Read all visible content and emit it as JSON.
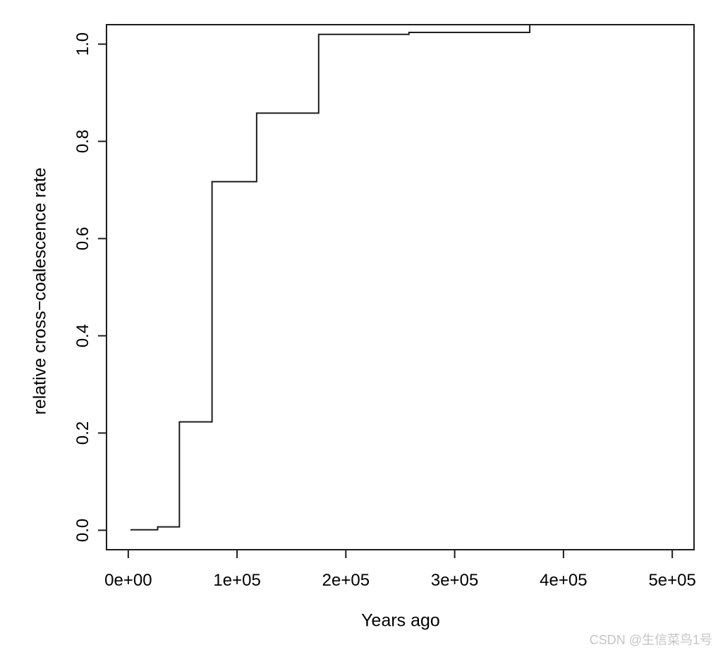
{
  "figure": {
    "background": "#ffffff",
    "line_color": "#1d1d1d",
    "text_color": "#000000"
  },
  "watermark": {
    "text": "CSDN @生信菜鸟1号",
    "color": "#c5c5c5"
  },
  "chart_data": {
    "type": "line",
    "subtype": "step-post",
    "title": "",
    "xlabel": "Years ago",
    "ylabel": "relative cross−coalescence rate",
    "xlim": [
      0,
      500000
    ],
    "ylim": [
      0,
      1
    ],
    "xlim_display": [
      -20000,
      520000
    ],
    "ylim_display": [
      -0.04,
      1.04
    ],
    "grid": false,
    "legend": "none",
    "x_ticks": [
      {
        "value": 0,
        "label": "0e+00"
      },
      {
        "value": 100000,
        "label": "1e+05"
      },
      {
        "value": 200000,
        "label": "2e+05"
      },
      {
        "value": 300000,
        "label": "3e+05"
      },
      {
        "value": 400000,
        "label": "4e+05"
      },
      {
        "value": 500000,
        "label": "5e+05"
      }
    ],
    "y_ticks": [
      {
        "value": 0.0,
        "label": "0.0"
      },
      {
        "value": 0.2,
        "label": "0.2"
      },
      {
        "value": 0.4,
        "label": "0.4"
      },
      {
        "value": 0.6,
        "label": "0.6"
      },
      {
        "value": 0.8,
        "label": "0.8"
      },
      {
        "value": 1.0,
        "label": "1.0"
      }
    ],
    "series": [
      {
        "name": "relative cross-coalescence rate",
        "color": "#1d1d1d",
        "step": "post",
        "points": [
          [
            2000,
            0.001
          ],
          [
            27000,
            0.007
          ],
          [
            47000,
            0.223
          ],
          [
            77000,
            0.717
          ],
          [
            118000,
            0.858
          ],
          [
            175000,
            1.02
          ],
          [
            258000,
            1.024
          ],
          [
            369000,
            1.05
          ]
        ],
        "note": "final step rises above the displayed y-range and is clipped at the plot box top"
      }
    ]
  }
}
